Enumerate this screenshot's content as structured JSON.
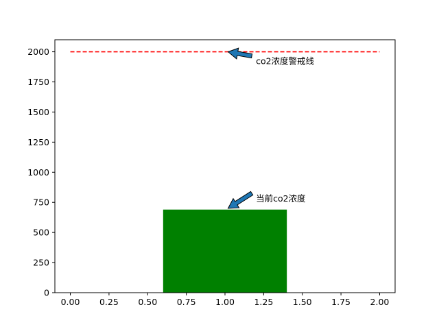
{
  "chart_data": {
    "type": "bar",
    "xlim": [
      -0.1,
      2.1
    ],
    "ylim": [
      0,
      2100
    ],
    "x_ticks": [
      0,
      0.25,
      0.5,
      0.75,
      1.0,
      1.25,
      1.5,
      1.75,
      2.0
    ],
    "x_tick_labels": [
      "0.00",
      "0.25",
      "0.50",
      "0.75",
      "1.00",
      "1.25",
      "1.50",
      "1.75",
      "2.00"
    ],
    "y_ticks": [
      0,
      250,
      500,
      750,
      1000,
      1250,
      1500,
      1750,
      2000
    ],
    "y_tick_labels": [
      "0",
      "250",
      "500",
      "750",
      "1000",
      "1250",
      "1500",
      "1750",
      "2000"
    ],
    "grid": false,
    "bars": [
      {
        "x_start": 0.6,
        "x_end": 1.4,
        "value": 690,
        "color": "#008000"
      }
    ],
    "reference_line": {
      "x_start": 0.0,
      "x_end": 2.0,
      "value": 2000,
      "color": "#ff0000",
      "style": "dashed"
    },
    "annotations": [
      {
        "text": "co2浓度警戒线",
        "point": [
          1.02,
          2000
        ],
        "text_pos": [
          1.2,
          1920
        ]
      },
      {
        "text": "当前co2浓度",
        "point": [
          1.02,
          700
        ],
        "text_pos": [
          1.2,
          780
        ]
      }
    ],
    "arrow_color": "#1f77b4"
  }
}
